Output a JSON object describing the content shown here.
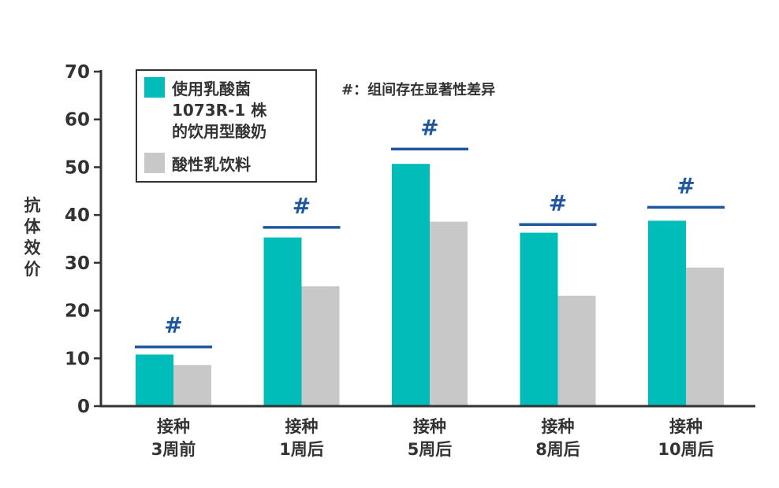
{
  "chart_data": {
    "type": "bar",
    "title": "",
    "ylabel": "抗体效价",
    "xlabel": "",
    "ylim": [
      0,
      70
    ],
    "yticks": [
      0,
      10,
      20,
      30,
      40,
      50,
      60,
      70
    ],
    "categories": [
      [
        "接种",
        "3周前"
      ],
      [
        "接种",
        "1周后"
      ],
      [
        "接种",
        "5周后"
      ],
      [
        "接种",
        "8周后"
      ],
      [
        "接种",
        "10周后"
      ]
    ],
    "series": [
      {
        "name_lines": [
          "使用乳酸菌",
          "1073R-1 株",
          "的饮用型酸奶"
        ],
        "color": "#00BDBA",
        "values": [
          10.8,
          35.3,
          50.7,
          36.3,
          38.8
        ]
      },
      {
        "name_lines": [
          "酸性乳饮料"
        ],
        "color": "#C8C8C8",
        "values": [
          8.6,
          25.1,
          38.6,
          23.1,
          29.0
        ]
      }
    ],
    "significance": {
      "symbol": "#",
      "color": "#1F56A0",
      "line_values": [
        12.4,
        37.4,
        53.8,
        38.0,
        41.6
      ],
      "note": "#：组间存在显著性差异"
    },
    "grid": false,
    "legend_position": "top-left"
  }
}
